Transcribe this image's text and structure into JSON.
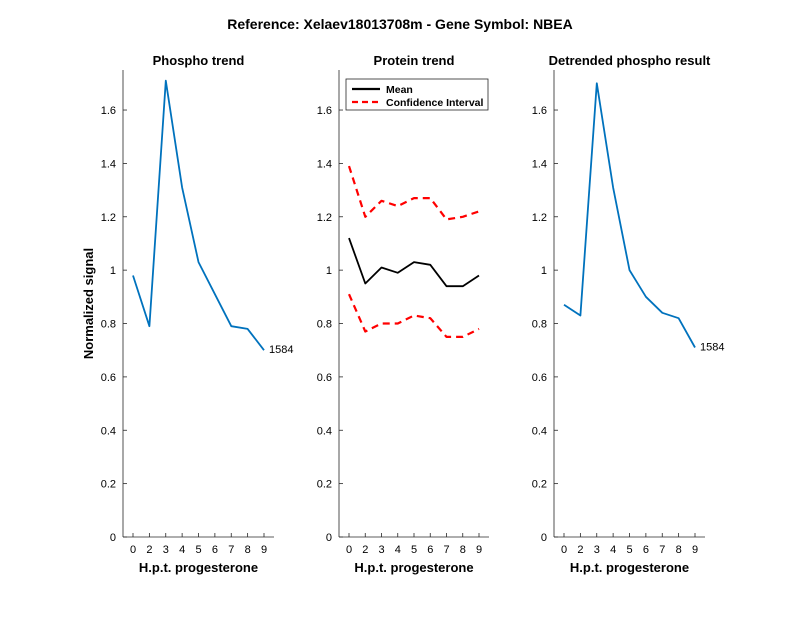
{
  "figure_title": "Reference:  Xelaev18013708m - Gene Symbol:  NBEA",
  "colors": {
    "phospho": "#0072BD",
    "mean": "#000000",
    "ci": "#FF0000"
  },
  "chart_data": [
    {
      "type": "line",
      "title": "Phospho trend",
      "xlabel": "H.p.t. progesterone",
      "ylabel": "Normalized signal",
      "categories": [
        "0",
        "2",
        "3",
        "4",
        "5",
        "6",
        "7",
        "8",
        "9"
      ],
      "ylim": [
        0,
        1.75
      ],
      "yticks": [
        "0",
        "0.2",
        "0.4",
        "0.6",
        "0.8",
        "1",
        "1.2",
        "1.4",
        "1.6"
      ],
      "series": [
        {
          "values": [
            0.98,
            0.79,
            1.71,
            1.31,
            1.03,
            0.91,
            0.79,
            0.78,
            0.7
          ],
          "style": "solid",
          "color": "#0072BD"
        }
      ],
      "annotation": "1584"
    },
    {
      "type": "line",
      "title": "Protein trend",
      "xlabel": "H.p.t. progesterone",
      "ylabel": "",
      "categories": [
        "0",
        "2",
        "3",
        "4",
        "5",
        "6",
        "7",
        "8",
        "9"
      ],
      "ylim": [
        0,
        1.75
      ],
      "yticks": [
        "0",
        "0.2",
        "0.4",
        "0.6",
        "0.8",
        "1",
        "1.2",
        "1.4",
        "1.6"
      ],
      "legend": {
        "position": "top-left",
        "entries": [
          "Mean",
          "Confidence Interval"
        ]
      },
      "series": [
        {
          "name": "Mean",
          "values": [
            1.12,
            0.95,
            1.01,
            0.99,
            1.03,
            1.02,
            0.94,
            0.94,
            0.98
          ],
          "style": "solid",
          "color": "#000000"
        },
        {
          "name": "Confidence Interval",
          "values": [
            1.39,
            1.2,
            1.26,
            1.24,
            1.27,
            1.27,
            1.19,
            1.2,
            1.22
          ],
          "style": "dashed",
          "color": "#FF0000"
        },
        {
          "values": [
            0.91,
            0.77,
            0.8,
            0.8,
            0.83,
            0.82,
            0.75,
            0.75,
            0.78
          ],
          "style": "dashed",
          "color": "#FF0000"
        }
      ]
    },
    {
      "type": "line",
      "title": "Detrended phospho result",
      "xlabel": "H.p.t. progesterone",
      "ylabel": "",
      "categories": [
        "0",
        "2",
        "3",
        "4",
        "5",
        "6",
        "7",
        "8",
        "9"
      ],
      "ylim": [
        0,
        1.75
      ],
      "yticks": [
        "0",
        "0.2",
        "0.4",
        "0.6",
        "0.8",
        "1",
        "1.2",
        "1.4",
        "1.6"
      ],
      "series": [
        {
          "values": [
            0.87,
            0.83,
            1.7,
            1.31,
            1.0,
            0.9,
            0.84,
            0.82,
            0.71
          ],
          "style": "solid",
          "color": "#0072BD"
        }
      ],
      "annotation": "1584"
    }
  ]
}
